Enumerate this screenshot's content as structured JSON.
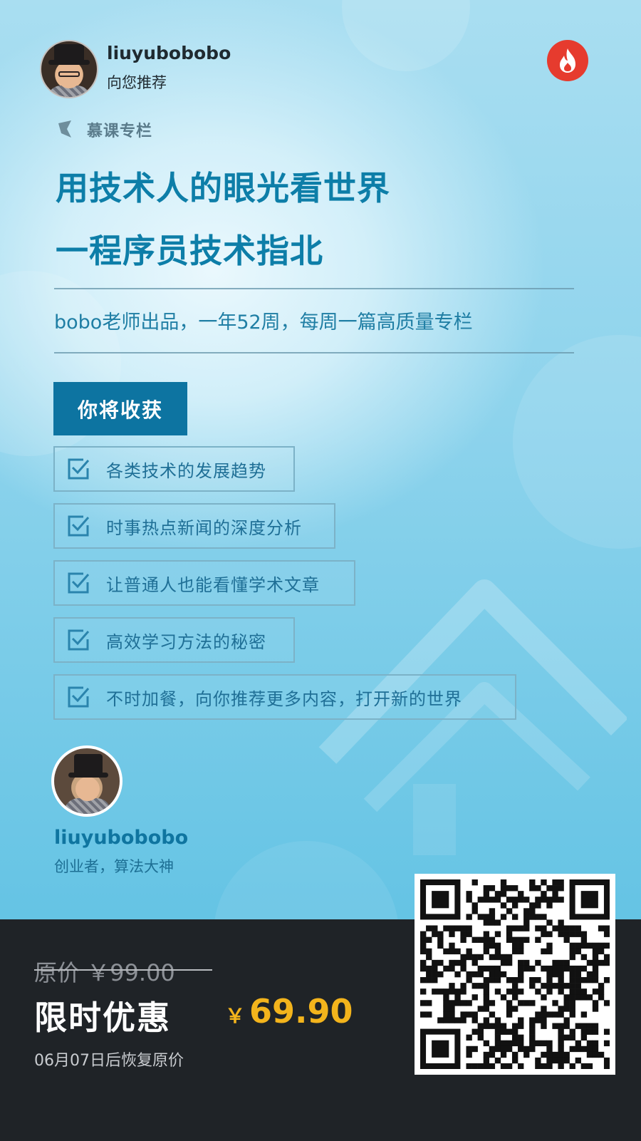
{
  "header": {
    "username": "liuyubobobo",
    "subtitle": "向您推荐",
    "logo_icon": "flame-icon"
  },
  "tag": {
    "label": "慕课专栏"
  },
  "title": {
    "line1": "用技术人的眼光看世界",
    "line2": "一程序员技术指北"
  },
  "subtitle": "bobo老师出品，一年52周，每周一篇高质量专栏",
  "benefits": {
    "heading": "你将收获",
    "items": [
      "各类技术的发展趋势",
      "时事热点新闻的深度分析",
      "让普通人也能看懂学术文章",
      "高效学习方法的秘密",
      "不时加餐，向你推荐更多内容，打开新的世界"
    ]
  },
  "author": {
    "name": "liuyubobobo",
    "title": "创业者，算法大神"
  },
  "pricing": {
    "original": "原价 ￥99.00",
    "promo_label": "限时优惠",
    "currency": "￥",
    "promo_price": "69.90",
    "restore_note": "06月07日后恢复原价"
  },
  "colors": {
    "accent": "#0d7ea8",
    "price": "#f3b41c",
    "footer_bg": "#1f2327",
    "logo_red": "#e63b2e"
  }
}
